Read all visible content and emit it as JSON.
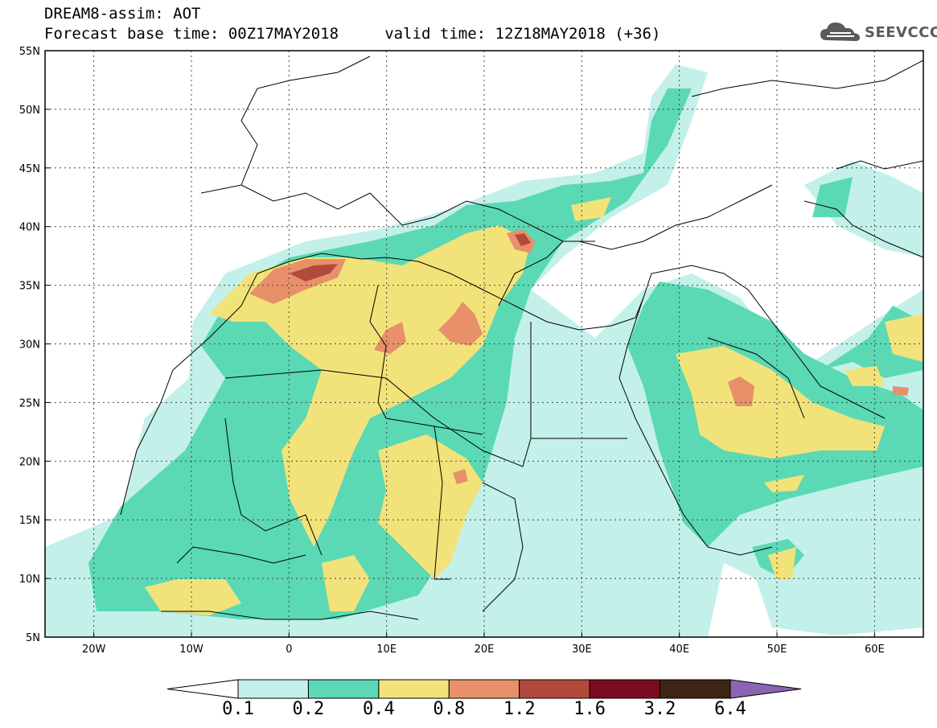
{
  "title": {
    "line1": "DREAM8-assim: AOT",
    "line2": "Forecast base time: 00Z17MAY2018     valid time: 12Z18MAY2018 (+36)"
  },
  "logo": {
    "text": "SEEVCCC",
    "icon": "cloud-icon"
  },
  "axes": {
    "lat_labels": [
      "55N",
      "50N",
      "45N",
      "40N",
      "35N",
      "30N",
      "25N",
      "20N",
      "15N",
      "10N",
      "5N"
    ],
    "lon_labels": [
      "20W",
      "10W",
      "0",
      "10E",
      "20E",
      "30E",
      "40E",
      "50E",
      "60E"
    ]
  },
  "colorbar": {
    "labels": [
      "0.1",
      "0.2",
      "0.4",
      "0.8",
      "1.2",
      "1.6",
      "3.2",
      "6.4"
    ],
    "colors": [
      "#ffffff",
      "#c4f0ea",
      "#5ad9b4",
      "#f2e27a",
      "#e8906a",
      "#b24a3c",
      "#7a0c22",
      "#3e2414",
      "#8c64b4"
    ]
  },
  "palette": {
    "c1": "#c4f0ea",
    "c2": "#5ad9b4",
    "c3": "#f2e27a",
    "c4": "#e8906a",
    "c5": "#b24a3c"
  }
}
